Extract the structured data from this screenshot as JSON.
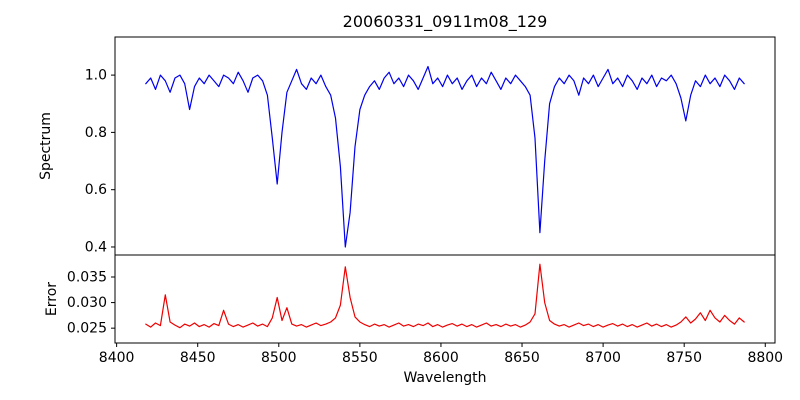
{
  "figure": {
    "title": "20060331_0911m08_129",
    "xlabel": "Wavelength",
    "background": "#ffffff"
  },
  "chart_data": [
    {
      "type": "line",
      "panel": "spectrum",
      "title": "20060331_0911m08_129",
      "ylabel": "Spectrum",
      "color": "#0000ee",
      "xlim": [
        8399,
        8806
      ],
      "ylim": [
        0.372,
        1.133
      ],
      "yticks": [
        0.4,
        0.6,
        0.8,
        1.0
      ],
      "ytick_labels": [
        "0.4",
        "0.6",
        "0.8",
        "1.0"
      ],
      "x_start": 8418,
      "x_step": 3,
      "values": [
        0.97,
        0.99,
        0.95,
        1.0,
        0.98,
        0.94,
        0.99,
        1.0,
        0.97,
        0.88,
        0.96,
        0.99,
        0.97,
        1.0,
        0.98,
        0.96,
        1.0,
        0.99,
        0.97,
        1.01,
        0.98,
        0.94,
        0.99,
        1.0,
        0.98,
        0.93,
        0.78,
        0.62,
        0.8,
        0.94,
        0.98,
        1.02,
        0.97,
        0.95,
        0.99,
        0.97,
        1.0,
        0.96,
        0.93,
        0.85,
        0.68,
        0.4,
        0.52,
        0.75,
        0.88,
        0.93,
        0.96,
        0.98,
        0.95,
        0.99,
        1.01,
        0.97,
        0.99,
        0.96,
        1.0,
        0.98,
        0.95,
        0.99,
        1.03,
        0.97,
        0.99,
        0.96,
        1.0,
        0.97,
        0.99,
        0.95,
        0.98,
        1.0,
        0.96,
        0.99,
        0.97,
        1.01,
        0.98,
        0.95,
        0.99,
        0.97,
        1.0,
        0.98,
        0.96,
        0.93,
        0.78,
        0.45,
        0.7,
        0.9,
        0.96,
        0.99,
        0.97,
        1.0,
        0.98,
        0.93,
        0.99,
        0.97,
        1.0,
        0.96,
        0.99,
        1.02,
        0.97,
        0.99,
        0.96,
        1.0,
        0.98,
        0.95,
        0.99,
        0.97,
        1.0,
        0.96,
        0.99,
        0.98,
        1.0,
        0.97,
        0.92,
        0.84,
        0.93,
        0.98,
        0.96,
        1.0,
        0.97,
        0.99,
        0.96,
        1.0,
        0.98,
        0.95,
        0.99,
        0.97
      ],
      "absorption_line_centers": [
        8498,
        8542,
        8662,
        8751
      ]
    },
    {
      "type": "line",
      "panel": "error",
      "ylabel": "Error",
      "xlabel": "Wavelength",
      "color": "#ee0000",
      "xlim": [
        8399,
        8806
      ],
      "ylim": [
        0.0221,
        0.0393
      ],
      "yticks": [
        0.025,
        0.03,
        0.035
      ],
      "ytick_labels": [
        "0.025",
        "0.030",
        "0.035"
      ],
      "xticks": [
        8400,
        8450,
        8500,
        8550,
        8600,
        8650,
        8700,
        8750,
        8800
      ],
      "xtick_labels": [
        "8400",
        "8450",
        "8500",
        "8550",
        "8600",
        "8650",
        "8700",
        "8750",
        "8800"
      ],
      "x_start": 8418,
      "x_step": 3,
      "values": [
        0.0258,
        0.0252,
        0.026,
        0.0255,
        0.0315,
        0.0262,
        0.0256,
        0.0251,
        0.0258,
        0.0254,
        0.026,
        0.0253,
        0.0257,
        0.0252,
        0.0259,
        0.0255,
        0.0285,
        0.0258,
        0.0253,
        0.0257,
        0.0252,
        0.0256,
        0.026,
        0.0254,
        0.0258,
        0.0253,
        0.027,
        0.031,
        0.0265,
        0.029,
        0.0258,
        0.0254,
        0.0257,
        0.0252,
        0.0256,
        0.026,
        0.0255,
        0.0258,
        0.0262,
        0.027,
        0.0295,
        0.037,
        0.031,
        0.0272,
        0.0262,
        0.0257,
        0.0253,
        0.0258,
        0.0254,
        0.0257,
        0.0252,
        0.0256,
        0.026,
        0.0254,
        0.0257,
        0.0253,
        0.0258,
        0.0255,
        0.026,
        0.0253,
        0.0257,
        0.0252,
        0.0256,
        0.0259,
        0.0254,
        0.0258,
        0.0253,
        0.0257,
        0.0252,
        0.0256,
        0.026,
        0.0254,
        0.0257,
        0.0253,
        0.0258,
        0.0254,
        0.0257,
        0.0252,
        0.0256,
        0.0262,
        0.0278,
        0.0375,
        0.03,
        0.0265,
        0.0258,
        0.0254,
        0.0257,
        0.0252,
        0.0256,
        0.026,
        0.0255,
        0.0258,
        0.0253,
        0.0257,
        0.0252,
        0.0256,
        0.0259,
        0.0254,
        0.0258,
        0.0253,
        0.0257,
        0.0252,
        0.0256,
        0.026,
        0.0254,
        0.0258,
        0.0253,
        0.0257,
        0.0252,
        0.0256,
        0.0262,
        0.0272,
        0.026,
        0.0268,
        0.028,
        0.0265,
        0.0285,
        0.027,
        0.0262,
        0.0275,
        0.0265,
        0.0258,
        0.027,
        0.0262
      ]
    }
  ]
}
